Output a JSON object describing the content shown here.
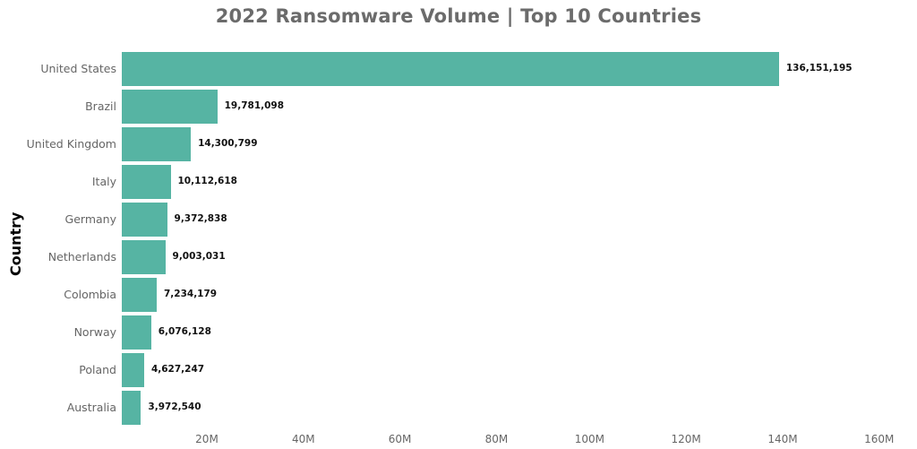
{
  "chart_data": {
    "type": "bar",
    "orientation": "horizontal",
    "title": "2022 Ransomware Volume | Top 10 Countries",
    "xlabel": "",
    "ylabel": "Country",
    "categories": [
      "United States",
      "Brazil",
      "United Kingdom",
      "Italy",
      "Germany",
      "Netherlands",
      "Colombia",
      "Norway",
      "Poland",
      "Australia"
    ],
    "values": [
      136151195,
      19781098,
      14300799,
      10112618,
      9372838,
      9003031,
      7234179,
      6076128,
      4627247,
      3972540
    ],
    "value_labels": [
      "136,151,195",
      "19,781,098",
      "14,300,799",
      "10,112,618",
      "9,372,838",
      "9,003,031",
      "7,234,179",
      "6,076,128",
      "4,627,247",
      "3,972,540"
    ],
    "xlim": [
      0,
      160000000
    ],
    "x_ticks": [
      "20M",
      "40M",
      "60M",
      "80M",
      "100M",
      "120M",
      "140M",
      "160M"
    ],
    "x_tick_values": [
      20000000,
      40000000,
      60000000,
      80000000,
      100000000,
      120000000,
      140000000,
      160000000
    ],
    "grid": false,
    "legend": "none",
    "bar_color": "#56b4a3"
  }
}
